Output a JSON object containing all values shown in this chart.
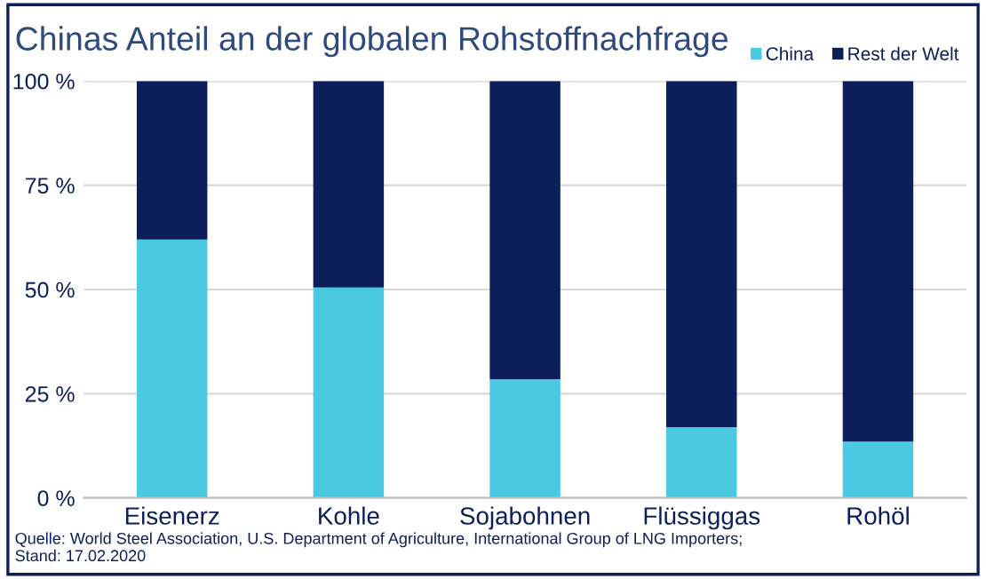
{
  "chart_data": {
    "type": "bar",
    "title": "Chinas Anteil an der globalen Rohstoffnachfrage",
    "categories": [
      "Eisenerz",
      "Kohle",
      "Sojabohnen",
      "Flüssiggas",
      "Rohöl"
    ],
    "series": [
      {
        "name": "China",
        "color": "#4bc8e2",
        "values": [
          62,
          50.5,
          28.5,
          17,
          13.5
        ]
      },
      {
        "name": "Rest der Welt",
        "color": "#0c1f5b",
        "values": [
          38,
          49.5,
          71.5,
          83,
          86.5
        ]
      }
    ],
    "stacked": true,
    "ylim": [
      0,
      100
    ],
    "yticks": [
      {
        "value": 0,
        "label": "0 %"
      },
      {
        "value": 25,
        "label": "25 %"
      },
      {
        "value": 50,
        "label": "50 %"
      },
      {
        "value": 75,
        "label": "75 %"
      },
      {
        "value": 100,
        "label": "100 %"
      }
    ],
    "grid": "y",
    "legend": "top right",
    "annotations": [
      "Quelle: World Steel Association, U.S. Department of Agriculture, International Group of LNG Importers;\nStand: 17.02.2020"
    ]
  }
}
